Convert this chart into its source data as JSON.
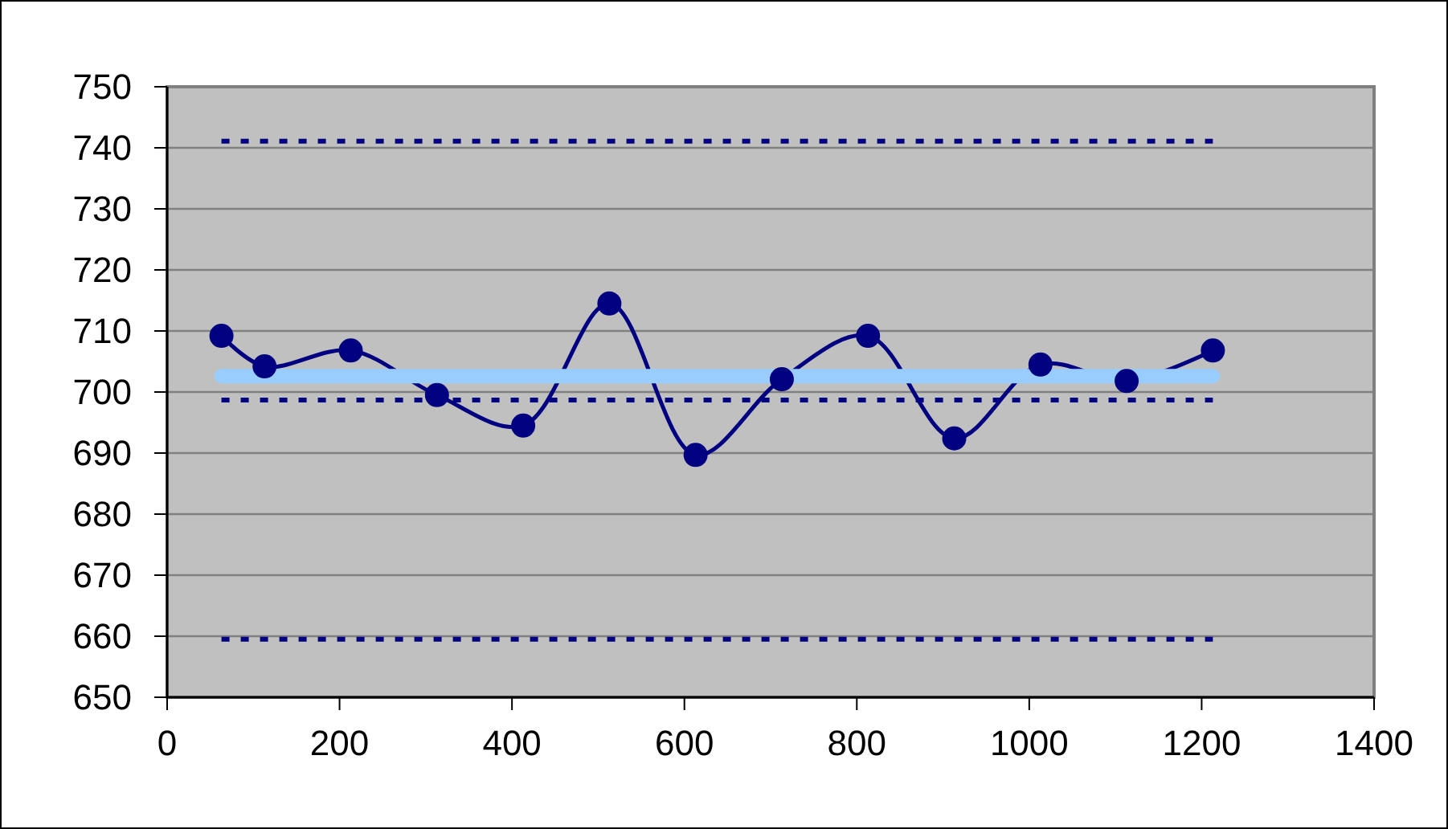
{
  "chart_data": {
    "type": "line",
    "xlim": [
      0,
      1400
    ],
    "xticks": [
      0,
      200,
      400,
      600,
      800,
      1000,
      1200,
      1400
    ],
    "ylim": [
      650,
      750
    ],
    "yticks": [
      650,
      660,
      670,
      680,
      690,
      700,
      710,
      720,
      730,
      740,
      750
    ],
    "grid": "y",
    "series": [
      {
        "color": "#000080",
        "marker": "circle",
        "line_style": "solid",
        "x": [
          63,
          113,
          213,
          313,
          413,
          513,
          613,
          713,
          813,
          913,
          1013,
          1113,
          1213
        ],
        "values": [
          709.2,
          704.2,
          706.8,
          699.5,
          694.5,
          714.5,
          689.7,
          702.1,
          709.2,
          692.4,
          704.5,
          701.8,
          706.8
        ]
      },
      {
        "color": "#99ccff",
        "marker": "none",
        "line_style": "solid",
        "x": [
          63,
          1213
        ],
        "values": [
          702.6,
          702.6
        ]
      },
      {
        "color": "#000080",
        "marker": "none",
        "line_style": "dashed",
        "x": [
          63,
          1213
        ],
        "values": [
          741.1,
          741.1
        ]
      },
      {
        "color": "#000080",
        "marker": "none",
        "line_style": "dashed",
        "x": [
          63,
          1213
        ],
        "values": [
          698.7,
          698.7
        ]
      },
      {
        "color": "#000080",
        "marker": "none",
        "line_style": "dashed",
        "x": [
          63,
          1213
        ],
        "values": [
          659.5,
          659.5
        ]
      }
    ]
  }
}
